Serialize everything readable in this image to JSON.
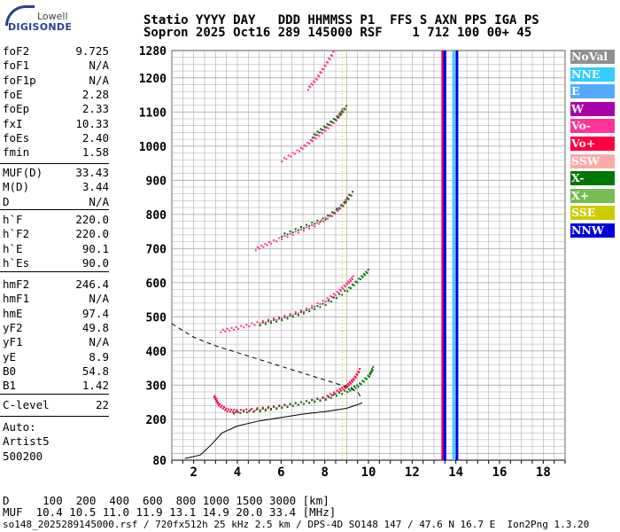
{
  "logo": {
    "line1": "Lowell",
    "line2": "DIGISONDE"
  },
  "header": {
    "line1": "Statio YYYY DAY   DDD HHMMSS P1  FFS S AXN PPS IGA PS",
    "line2": "Sopron 2025 Oct16 289 145000 RSF    1 712 100 00+ 45"
  },
  "params": {
    "group1": [
      {
        "k": "foF2",
        "v": "9.725"
      },
      {
        "k": "foF1",
        "v": "N/A"
      },
      {
        "k": "foF1p",
        "v": "N/A"
      },
      {
        "k": "foE",
        "v": "2.28"
      },
      {
        "k": "foEp",
        "v": "2.33"
      },
      {
        "k": "fxI",
        "v": "10.33"
      },
      {
        "k": "foEs",
        "v": "2.40"
      },
      {
        "k": "fmin",
        "v": "1.58"
      }
    ],
    "group2": [
      {
        "k": "MUF(D)",
        "v": "33.43"
      },
      {
        "k": "M(D)",
        "v": "3.44"
      },
      {
        "k": "D",
        "v": "N/A"
      }
    ],
    "group3": [
      {
        "k": "h`F",
        "v": "220.0"
      },
      {
        "k": "h`F2",
        "v": "220.0"
      },
      {
        "k": "h`E",
        "v": "90.1"
      },
      {
        "k": "h`Es",
        "v": "90.0"
      }
    ],
    "group4": [
      {
        "k": "hmF2",
        "v": "246.4"
      },
      {
        "k": "hmF1",
        "v": "N/A"
      },
      {
        "k": "hmE",
        "v": "97.4"
      },
      {
        "k": "yF2",
        "v": "49.8"
      },
      {
        "k": "yF1",
        "v": "N/A"
      },
      {
        "k": "yE",
        "v": "8.9"
      },
      {
        "k": "B0",
        "v": "54.8"
      },
      {
        "k": "B1",
        "v": "1.42"
      }
    ],
    "group5": [
      {
        "k": "C-level",
        "v": "22"
      }
    ]
  },
  "auto": {
    "line1": "Auto:",
    "line2": "Artist5",
    "line3": "500200"
  },
  "legend": [
    {
      "label": "NoVal",
      "color": "#909090"
    },
    {
      "label": "NNE",
      "color": "#33ccff"
    },
    {
      "label": "E",
      "color": "#55aaff"
    },
    {
      "label": "W",
      "color": "#aa00aa"
    },
    {
      "label": "Vo-",
      "color": "#ff3399"
    },
    {
      "label": "Vo+",
      "color": "#ff0044"
    },
    {
      "label": "SSW",
      "color": "#ffaaaa"
    },
    {
      "label": "X-",
      "color": "#007700"
    },
    {
      "label": "X+",
      "color": "#77bb55"
    },
    {
      "label": "SSE",
      "color": "#cccc00"
    },
    {
      "label": "NNW",
      "color": "#0000dd"
    }
  ],
  "footer": {
    "line1": "D     100  200  400  600  800 1000 1500 3000 [km]",
    "line2": "MUF  10.4 10.5 11.0 11.9 13.1 14.9 20.0 33.4 [MHz]",
    "line3": "so148_2025289145000.rsf / 720fx512h 25 kHz 2.5 km / DPS-4D SO148 147 / 47.6 N 16.7 E  Ion2Png 1.3.20"
  },
  "chart_data": {
    "type": "scatter",
    "title": "",
    "xlabel": "",
    "ylabel": "",
    "xlim": [
      1,
      19
    ],
    "ylim": [
      80,
      1280
    ],
    "x_ticks": [
      2,
      4,
      6,
      8,
      10,
      12,
      14,
      16,
      18
    ],
    "y_ticks": [
      200,
      300,
      400,
      500,
      600,
      700,
      800,
      900,
      1000,
      1100,
      1200,
      1280
    ],
    "y_tick_labels": [
      "200",
      "300",
      "400",
      "500",
      "600",
      "700",
      "800",
      "900",
      "1000",
      "1100",
      "1200",
      "1280"
    ],
    "bottom_label": "80",
    "grid": true,
    "series": [
      {
        "mode": "O",
        "color": "#ff0044",
        "points": [
          [
            2.9,
            270
          ],
          [
            3.1,
            245
          ],
          [
            3.5,
            228
          ],
          [
            4.0,
            225
          ],
          [
            5.0,
            232
          ],
          [
            6.0,
            240
          ],
          [
            7.0,
            250
          ],
          [
            8.0,
            265
          ],
          [
            8.6,
            285
          ],
          [
            9.0,
            300
          ],
          [
            9.3,
            320
          ],
          [
            9.6,
            350
          ]
        ]
      },
      {
        "mode": "X",
        "color": "#007700",
        "points": [
          [
            3.8,
            222
          ],
          [
            5.0,
            228
          ],
          [
            6.0,
            238
          ],
          [
            7.0,
            250
          ],
          [
            8.0,
            262
          ],
          [
            9.0,
            285
          ],
          [
            9.5,
            300
          ],
          [
            10.0,
            330
          ],
          [
            10.2,
            355
          ]
        ]
      },
      {
        "mode": "2O",
        "color": "#ff3399",
        "points": [
          [
            3.2,
            460
          ],
          [
            4.0,
            470
          ],
          [
            5.0,
            485
          ],
          [
            6.0,
            500
          ],
          [
            7.0,
            520
          ],
          [
            8.0,
            550
          ],
          [
            8.6,
            575
          ],
          [
            9.0,
            600
          ],
          [
            9.3,
            620
          ]
        ]
      },
      {
        "mode": "2X",
        "color": "#007700",
        "points": [
          [
            5.0,
            480
          ],
          [
            6.0,
            495
          ],
          [
            7.0,
            515
          ],
          [
            8.0,
            540
          ],
          [
            9.0,
            580
          ],
          [
            9.6,
            615
          ],
          [
            10.0,
            640
          ]
        ]
      },
      {
        "mode": "3O",
        "color": "#ff3399",
        "points": [
          [
            4.8,
            700
          ],
          [
            5.5,
            720
          ],
          [
            6.5,
            745
          ],
          [
            7.5,
            770
          ],
          [
            8.3,
            800
          ],
          [
            8.8,
            830
          ],
          [
            9.1,
            860
          ]
        ]
      },
      {
        "mode": "3X",
        "color": "#007700",
        "points": [
          [
            6.0,
            740
          ],
          [
            7.0,
            765
          ],
          [
            8.0,
            790
          ],
          [
            8.8,
            830
          ],
          [
            9.3,
            870
          ]
        ]
      },
      {
        "mode": "4O",
        "color": "#ff3399",
        "points": [
          [
            6.0,
            960
          ],
          [
            6.8,
            990
          ],
          [
            7.4,
            1020
          ],
          [
            8.0,
            1050
          ],
          [
            8.5,
            1080
          ],
          [
            8.8,
            1110
          ]
        ]
      },
      {
        "mode": "4X",
        "color": "#007700",
        "points": [
          [
            7.4,
            1030
          ],
          [
            8.0,
            1060
          ],
          [
            8.6,
            1090
          ],
          [
            9.0,
            1120
          ]
        ]
      },
      {
        "mode": "5O",
        "color": "#ff3399",
        "points": [
          [
            7.2,
            1170
          ],
          [
            7.6,
            1200
          ],
          [
            8.0,
            1240
          ],
          [
            8.4,
            1280
          ]
        ]
      }
    ],
    "profile_solid": [
      [
        1.6,
        85
      ],
      [
        2.3,
        95
      ],
      [
        2.8,
        125
      ],
      [
        3.3,
        160
      ],
      [
        4.0,
        180
      ],
      [
        5.0,
        195
      ],
      [
        6.0,
        205
      ],
      [
        7.0,
        215
      ],
      [
        8.0,
        222
      ],
      [
        9.0,
        232
      ],
      [
        9.6,
        245
      ],
      [
        9.725,
        248
      ]
    ],
    "profile_dashed": [
      [
        1.0,
        480
      ],
      [
        1.5,
        460
      ],
      [
        2.0,
        440
      ],
      [
        3.0,
        415
      ],
      [
        4.0,
        395
      ],
      [
        5.0,
        375
      ],
      [
        6.0,
        355
      ],
      [
        7.0,
        335
      ],
      [
        8.0,
        315
      ],
      [
        9.0,
        295
      ],
      [
        9.5,
        280
      ],
      [
        9.7,
        260
      ]
    ],
    "vertical_bands": [
      {
        "x": 13.4,
        "color": "#cc0077"
      },
      {
        "x": 13.5,
        "color": "#0000dd"
      },
      {
        "x": 13.9,
        "color": "#33ccff"
      },
      {
        "x": 14.05,
        "color": "#0000dd"
      },
      {
        "x": 8.8,
        "color": "#cccc00"
      },
      {
        "x": 9.0,
        "color": "#cccc00"
      }
    ]
  }
}
